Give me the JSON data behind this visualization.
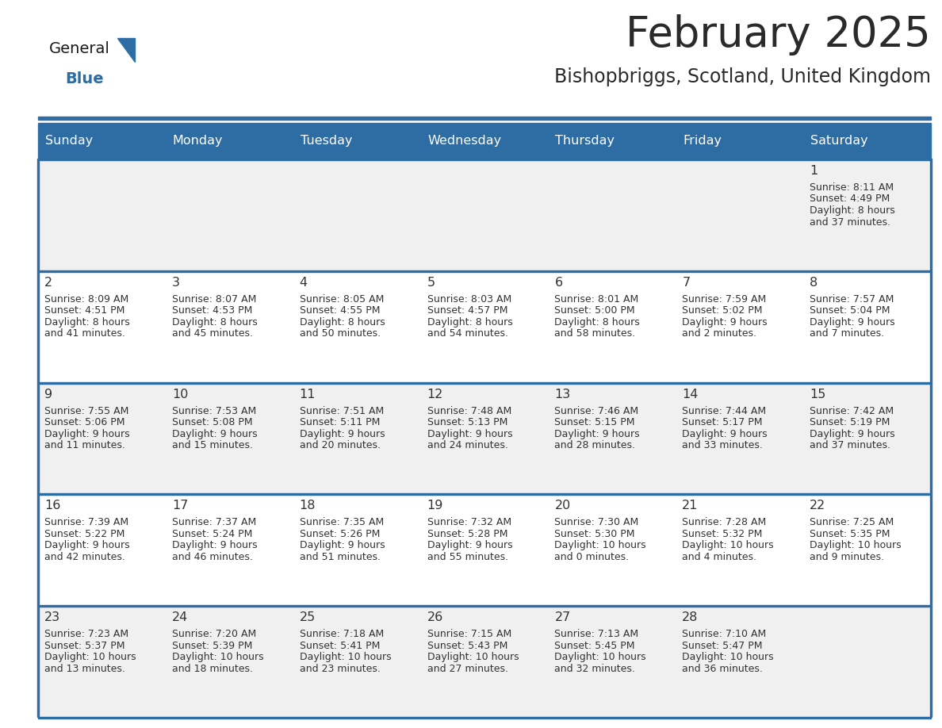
{
  "title": "February 2025",
  "subtitle": "Bishopbriggs, Scotland, United Kingdom",
  "header_bg": "#2E6DA4",
  "header_text": "#FFFFFF",
  "cell_bg_odd": "#F0F0F0",
  "cell_bg_even": "#FFFFFF",
  "divider_color": "#2E6DA4",
  "text_color": "#333333",
  "day_headers": [
    "Sunday",
    "Monday",
    "Tuesday",
    "Wednesday",
    "Thursday",
    "Friday",
    "Saturday"
  ],
  "weeks": [
    [
      {
        "day": "",
        "sunrise": "",
        "sunset": "",
        "daylight": ""
      },
      {
        "day": "",
        "sunrise": "",
        "sunset": "",
        "daylight": ""
      },
      {
        "day": "",
        "sunrise": "",
        "sunset": "",
        "daylight": ""
      },
      {
        "day": "",
        "sunrise": "",
        "sunset": "",
        "daylight": ""
      },
      {
        "day": "",
        "sunrise": "",
        "sunset": "",
        "daylight": ""
      },
      {
        "day": "",
        "sunrise": "",
        "sunset": "",
        "daylight": ""
      },
      {
        "day": "1",
        "sunrise": "8:11 AM",
        "sunset": "4:49 PM",
        "daylight": "8 hours\nand 37 minutes."
      }
    ],
    [
      {
        "day": "2",
        "sunrise": "8:09 AM",
        "sunset": "4:51 PM",
        "daylight": "8 hours\nand 41 minutes."
      },
      {
        "day": "3",
        "sunrise": "8:07 AM",
        "sunset": "4:53 PM",
        "daylight": "8 hours\nand 45 minutes."
      },
      {
        "day": "4",
        "sunrise": "8:05 AM",
        "sunset": "4:55 PM",
        "daylight": "8 hours\nand 50 minutes."
      },
      {
        "day": "5",
        "sunrise": "8:03 AM",
        "sunset": "4:57 PM",
        "daylight": "8 hours\nand 54 minutes."
      },
      {
        "day": "6",
        "sunrise": "8:01 AM",
        "sunset": "5:00 PM",
        "daylight": "8 hours\nand 58 minutes."
      },
      {
        "day": "7",
        "sunrise": "7:59 AM",
        "sunset": "5:02 PM",
        "daylight": "9 hours\nand 2 minutes."
      },
      {
        "day": "8",
        "sunrise": "7:57 AM",
        "sunset": "5:04 PM",
        "daylight": "9 hours\nand 7 minutes."
      }
    ],
    [
      {
        "day": "9",
        "sunrise": "7:55 AM",
        "sunset": "5:06 PM",
        "daylight": "9 hours\nand 11 minutes."
      },
      {
        "day": "10",
        "sunrise": "7:53 AM",
        "sunset": "5:08 PM",
        "daylight": "9 hours\nand 15 minutes."
      },
      {
        "day": "11",
        "sunrise": "7:51 AM",
        "sunset": "5:11 PM",
        "daylight": "9 hours\nand 20 minutes."
      },
      {
        "day": "12",
        "sunrise": "7:48 AM",
        "sunset": "5:13 PM",
        "daylight": "9 hours\nand 24 minutes."
      },
      {
        "day": "13",
        "sunrise": "7:46 AM",
        "sunset": "5:15 PM",
        "daylight": "9 hours\nand 28 minutes."
      },
      {
        "day": "14",
        "sunrise": "7:44 AM",
        "sunset": "5:17 PM",
        "daylight": "9 hours\nand 33 minutes."
      },
      {
        "day": "15",
        "sunrise": "7:42 AM",
        "sunset": "5:19 PM",
        "daylight": "9 hours\nand 37 minutes."
      }
    ],
    [
      {
        "day": "16",
        "sunrise": "7:39 AM",
        "sunset": "5:22 PM",
        "daylight": "9 hours\nand 42 minutes."
      },
      {
        "day": "17",
        "sunrise": "7:37 AM",
        "sunset": "5:24 PM",
        "daylight": "9 hours\nand 46 minutes."
      },
      {
        "day": "18",
        "sunrise": "7:35 AM",
        "sunset": "5:26 PM",
        "daylight": "9 hours\nand 51 minutes."
      },
      {
        "day": "19",
        "sunrise": "7:32 AM",
        "sunset": "5:28 PM",
        "daylight": "9 hours\nand 55 minutes."
      },
      {
        "day": "20",
        "sunrise": "7:30 AM",
        "sunset": "5:30 PM",
        "daylight": "10 hours\nand 0 minutes."
      },
      {
        "day": "21",
        "sunrise": "7:28 AM",
        "sunset": "5:32 PM",
        "daylight": "10 hours\nand 4 minutes."
      },
      {
        "day": "22",
        "sunrise": "7:25 AM",
        "sunset": "5:35 PM",
        "daylight": "10 hours\nand 9 minutes."
      }
    ],
    [
      {
        "day": "23",
        "sunrise": "7:23 AM",
        "sunset": "5:37 PM",
        "daylight": "10 hours\nand 13 minutes."
      },
      {
        "day": "24",
        "sunrise": "7:20 AM",
        "sunset": "5:39 PM",
        "daylight": "10 hours\nand 18 minutes."
      },
      {
        "day": "25",
        "sunrise": "7:18 AM",
        "sunset": "5:41 PM",
        "daylight": "10 hours\nand 23 minutes."
      },
      {
        "day": "26",
        "sunrise": "7:15 AM",
        "sunset": "5:43 PM",
        "daylight": "10 hours\nand 27 minutes."
      },
      {
        "day": "27",
        "sunrise": "7:13 AM",
        "sunset": "5:45 PM",
        "daylight": "10 hours\nand 32 minutes."
      },
      {
        "day": "28",
        "sunrise": "7:10 AM",
        "sunset": "5:47 PM",
        "daylight": "10 hours\nand 36 minutes."
      },
      {
        "day": "",
        "sunrise": "",
        "sunset": "",
        "daylight": ""
      }
    ]
  ],
  "logo_color_general": "#1a1a1a",
  "logo_color_blue": "#2E6DA4",
  "fig_width": 11.88,
  "fig_height": 9.18,
  "dpi": 100
}
